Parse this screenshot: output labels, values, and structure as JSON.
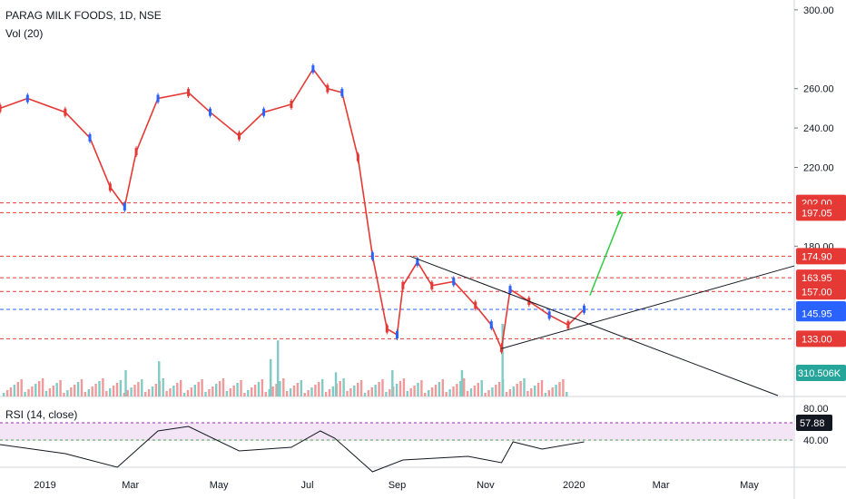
{
  "header": {
    "symbol": "PARAG MILK FOODS, 1D, NSE",
    "volume_label": "Vol (20)",
    "rsi_label": "RSI (14, close)"
  },
  "chart_data": {
    "type": "candlestick",
    "title": "PARAG MILK FOODS, 1D, NSE",
    "price_axis_ticks": [
      "300.00",
      "260.00",
      "240.00",
      "220.00",
      "180.00"
    ],
    "rsi_axis_ticks": [
      "80.00",
      "40.00"
    ],
    "time_axis_labels": [
      "2019",
      "Mar",
      "May",
      "Jul",
      "Sep",
      "Nov",
      "2020",
      "Mar",
      "May"
    ],
    "horizontal_levels": [
      {
        "label": "202.00",
        "value": 202.0,
        "color": "#e53935"
      },
      {
        "label": "197.05",
        "value": 197.05,
        "color": "#e53935"
      },
      {
        "label": "174.90",
        "value": 174.9,
        "color": "#e53935"
      },
      {
        "label": "163.95",
        "value": 163.95,
        "color": "#e53935"
      },
      {
        "label": "157.00",
        "value": 157.0,
        "color": "#e53935"
      },
      {
        "label": "147.90",
        "value": 147.9,
        "color": "#2962ff"
      },
      {
        "label": "133.00",
        "value": 133.0,
        "color": "#e53935"
      }
    ],
    "current_price_label": "145.95",
    "volume_label": "310.506K",
    "rsi_value_label": "57.88",
    "rsi_band": [
      40,
      60
    ],
    "price_path": [
      [
        "2018-12-01",
        250
      ],
      [
        "2018-12-20",
        255
      ],
      [
        "2019-01-15",
        248
      ],
      [
        "2019-02-01",
        235
      ],
      [
        "2019-02-15",
        210
      ],
      [
        "2019-02-25",
        200
      ],
      [
        "2019-03-05",
        228
      ],
      [
        "2019-03-20",
        255
      ],
      [
        "2019-04-10",
        258
      ],
      [
        "2019-04-25",
        248
      ],
      [
        "2019-05-15",
        236
      ],
      [
        "2019-06-01",
        248
      ],
      [
        "2019-06-20",
        252
      ],
      [
        "2019-07-05",
        270
      ],
      [
        "2019-07-15",
        260
      ],
      [
        "2019-07-25",
        258
      ],
      [
        "2019-08-05",
        225
      ],
      [
        "2019-08-15",
        175
      ],
      [
        "2019-08-25",
        138
      ],
      [
        "2019-09-01",
        135
      ],
      [
        "2019-09-05",
        160
      ],
      [
        "2019-09-15",
        172
      ],
      [
        "2019-09-25",
        160
      ],
      [
        "2019-10-10",
        162
      ],
      [
        "2019-10-25",
        150
      ],
      [
        "2019-11-05",
        140
      ],
      [
        "2019-11-12",
        128
      ],
      [
        "2019-11-18",
        158
      ],
      [
        "2019-12-01",
        152
      ],
      [
        "2019-12-15",
        145
      ],
      [
        "2019-12-28",
        140
      ],
      [
        "2020-01-08",
        148
      ]
    ],
    "volume_bars": [
      [
        "2019-02-25",
        120
      ],
      [
        "2019-03-20",
        160
      ],
      [
        "2019-06-05",
        170
      ],
      [
        "2019-06-10",
        255
      ],
      [
        "2019-07-20",
        110
      ],
      [
        "2019-08-28",
        120
      ],
      [
        "2019-10-15",
        120
      ],
      [
        "2019-11-12",
        330
      ]
    ],
    "rsi_path": [
      [
        "2018-12-01",
        55
      ],
      [
        "2019-01-15",
        45
      ],
      [
        "2019-02-20",
        30
      ],
      [
        "2019-03-20",
        70
      ],
      [
        "2019-04-10",
        75
      ],
      [
        "2019-05-15",
        48
      ],
      [
        "2019-06-20",
        52
      ],
      [
        "2019-07-10",
        70
      ],
      [
        "2019-07-20",
        62
      ],
      [
        "2019-08-15",
        25
      ],
      [
        "2019-09-05",
        38
      ],
      [
        "2019-10-20",
        42
      ],
      [
        "2019-11-12",
        35
      ],
      [
        "2019-11-20",
        58
      ],
      [
        "2019-12-10",
        50
      ],
      [
        "2020-01-08",
        58
      ]
    ]
  }
}
